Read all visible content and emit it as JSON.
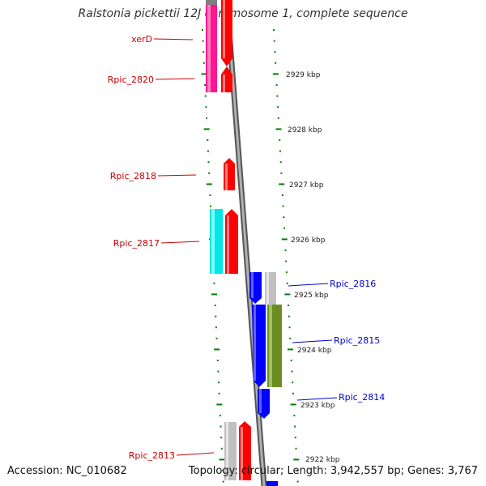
{
  "title": "Ralstonia pickettii 12J chromosome 1, complete sequence",
  "accession": "Accession: NC_010682",
  "summary": "Topology: circular; Length: 3,942,557 bp; Genes: 3,767",
  "colors": {
    "red": "#ff0000",
    "magenta": "#ff1493",
    "cyan": "#00e5e5",
    "blue": "#0000ff",
    "olive": "#6b8e23",
    "gray": "#c0c0c0",
    "tick_green": "#008000",
    "label_red": "#cc0000",
    "label_blue": "#0000cc"
  },
  "scale_labels": [
    "2929 kbp",
    "2928 kbp",
    "2927 kbp",
    "2926 kbp",
    "2925 kbp",
    "2924 kbp",
    "2923 kbp",
    "2922 kbp"
  ],
  "genes_left": [
    {
      "label": "xerD",
      "color": "red"
    },
    {
      "label": "Rpic_2820",
      "color": "red"
    },
    {
      "label": "Rpic_2818",
      "color": "red"
    },
    {
      "label": "Rpic_2817",
      "color": "red"
    },
    {
      "label": "Rpic_2813",
      "color": "red"
    }
  ],
  "genes_right": [
    {
      "label": "Rpic_2816",
      "color": "blue"
    },
    {
      "label": "Rpic_2815",
      "color": "blue"
    },
    {
      "label": "Rpic_2814",
      "color": "blue"
    }
  ]
}
